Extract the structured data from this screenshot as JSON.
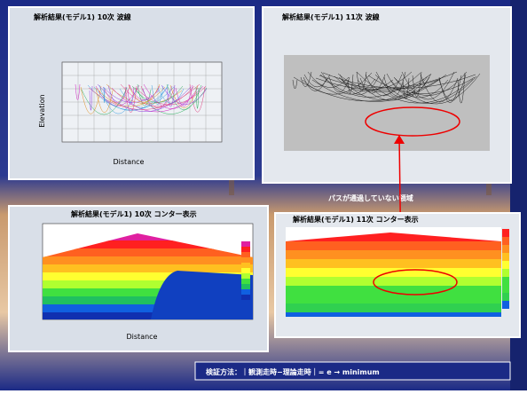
{
  "panels": [
    {
      "title": "解析結果(モデル1) 10次 波線",
      "x_label": "Distance",
      "y_label": "Elevation"
    },
    {
      "title": "解析結果(モデル1) 11次 波線"
    },
    {
      "title": "解析結果(モデル1) 10次 コンター表示",
      "x_label": "Distance"
    },
    {
      "title": "解析結果(モデル1) 11次 コンター表示"
    }
  ],
  "annotation": "パスが通過していない領域",
  "formula": "検証方法：｜観測走時−理論走時｜= e → minimum"
}
